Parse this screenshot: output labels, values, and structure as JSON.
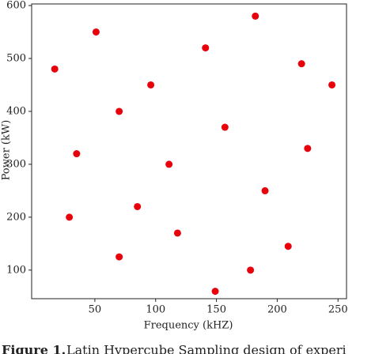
{
  "chart_data": {
    "type": "scatter",
    "x_label": "Frequency (kHZ)",
    "y_label": "Power (kW)",
    "series": [
      {
        "color": "#e8000b",
        "x": [
          17,
          51,
          182,
          141,
          220,
          245,
          96,
          70,
          157,
          35,
          225,
          111,
          190,
          29,
          85,
          118,
          209,
          70,
          178,
          149
        ],
        "values": [
          480,
          550,
          580,
          520,
          490,
          450,
          450,
          400,
          370,
          320,
          330,
          300,
          250,
          200,
          220,
          170,
          145,
          125,
          100,
          60
        ]
      }
    ],
    "xlim": [
      -2,
      257
    ],
    "ylim": [
      46,
      603
    ],
    "xticks": [
      50,
      100,
      150,
      200,
      250
    ],
    "yticks": [
      100,
      200,
      300,
      400,
      500,
      600
    ],
    "caption_label": "Figure 1.",
    "caption_text": "Latin Hypercube Sampling design of experi"
  }
}
